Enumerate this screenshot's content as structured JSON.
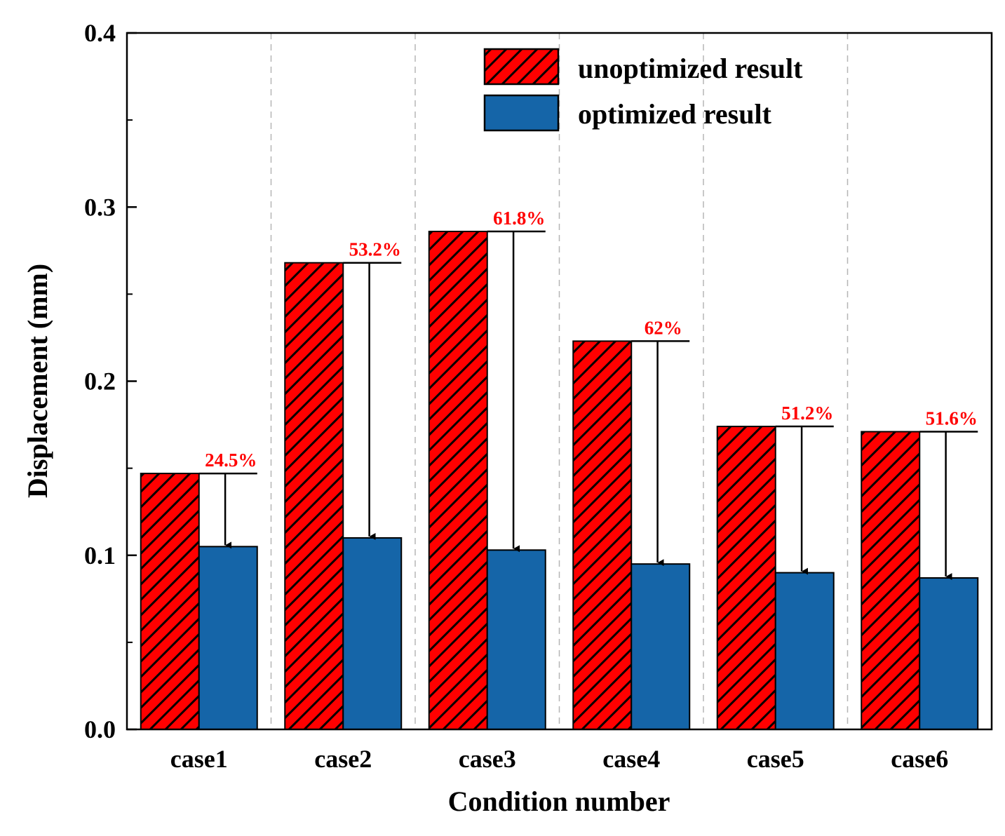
{
  "chart_data": {
    "type": "bar",
    "title": "",
    "xlabel": "Condition number",
    "ylabel": "Displacement (mm)",
    "ylim": [
      0.0,
      0.4
    ],
    "y_major_ticks": [
      0.0,
      0.1,
      0.2,
      0.3,
      0.4
    ],
    "y_tick_labels": [
      "0.0",
      "0.1",
      "0.2",
      "0.3",
      "0.4"
    ],
    "y_minor_ticks": [
      0.05,
      0.15,
      0.25,
      0.35
    ],
    "categories": [
      "case1",
      "case2",
      "case3",
      "case4",
      "case5",
      "case6"
    ],
    "series": [
      {
        "name": "unoptimized result",
        "values": [
          0.147,
          0.268,
          0.286,
          0.223,
          0.174,
          0.171
        ],
        "color": "#FF0000",
        "hatch": true
      },
      {
        "name": "optimized result",
        "values": [
          0.105,
          0.11,
          0.103,
          0.095,
          0.09,
          0.087
        ],
        "color": "#1565A8",
        "hatch": false
      }
    ],
    "annotations": [
      "24.5%",
      "53.2%",
      "61.8%",
      "62%",
      "51.2%",
      "51.6%"
    ],
    "annotation_color": "#FF0000",
    "legend": "top-right",
    "grid": "vertical dashed separators between categories"
  }
}
